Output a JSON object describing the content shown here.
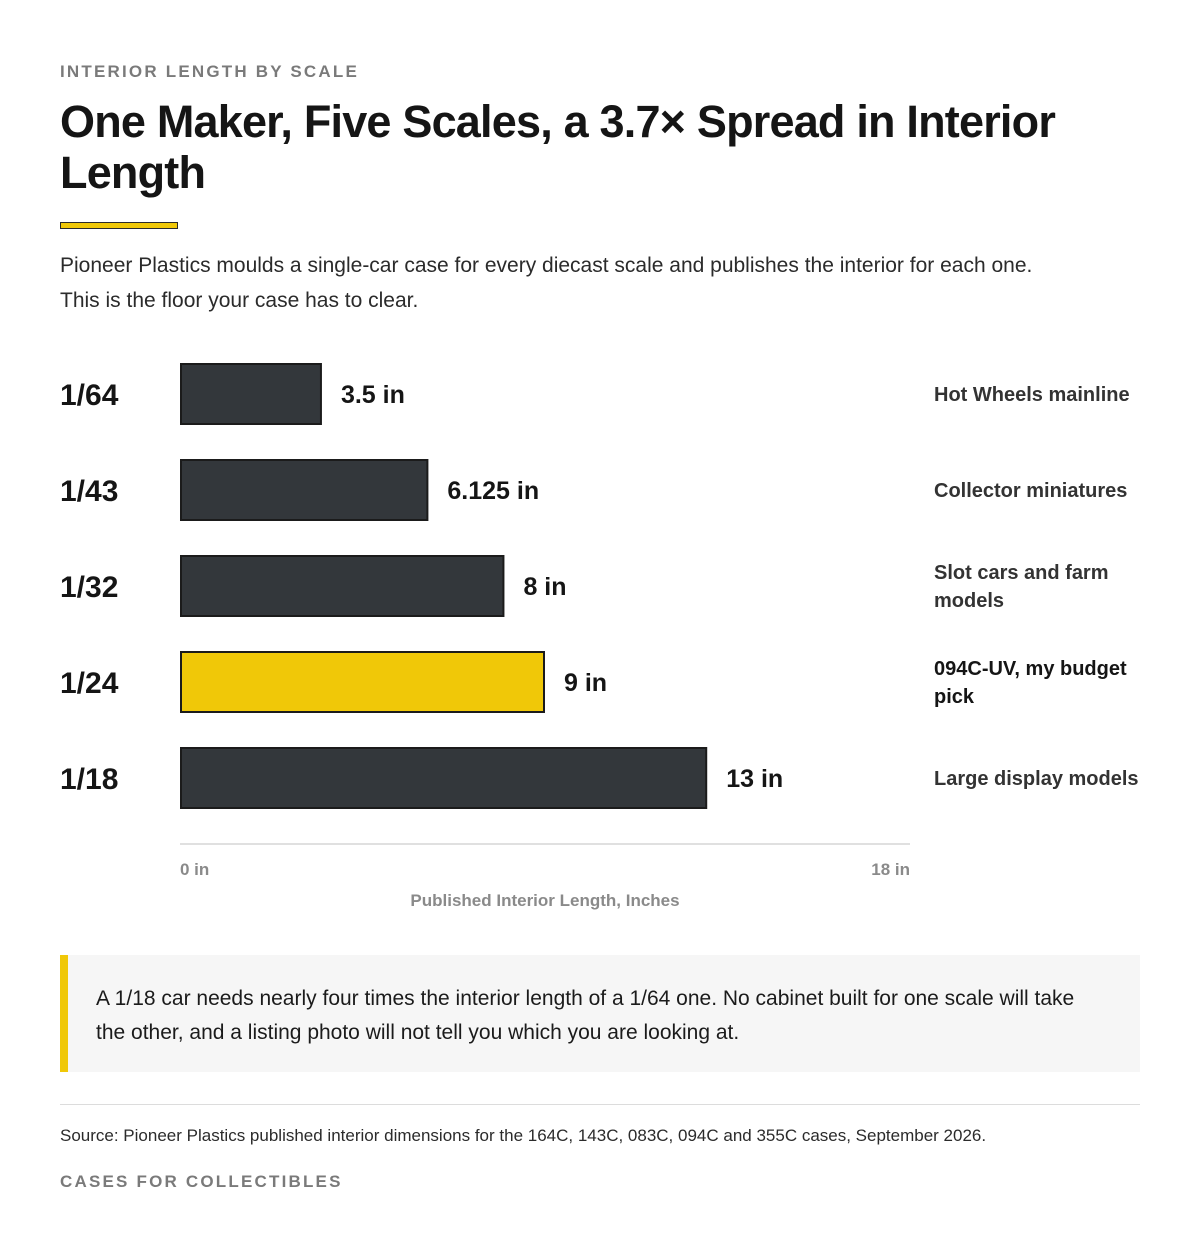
{
  "header": {
    "eyebrow": "INTERIOR LENGTH BY SCALE",
    "title": "One Maker, Five Scales, a 3.7× Spread in Interior Length",
    "subtitle": "Pioneer Plastics moulds a single-car case for every diecast scale and publishes the interior for each one. This is the floor your case has to clear."
  },
  "colors": {
    "bar": "#33373b",
    "highlight": "#f0c808",
    "accent_rule": "#f0c808",
    "bar_stroke": "#1b1b1b"
  },
  "chart_data": {
    "type": "bar",
    "orientation": "horizontal",
    "categories": [
      "1/64",
      "1/43",
      "1/32",
      "1/24",
      "1/18"
    ],
    "values": [
      3.5,
      6.125,
      8,
      9,
      13
    ],
    "value_labels": [
      "3.5 in",
      "6.125 in",
      "8 in",
      "9 in",
      "13 in"
    ],
    "annotations": [
      "Hot Wheels mainline",
      "Collector miniatures",
      "Slot cars and farm models",
      "094C-UV, my budget pick",
      "Large display models"
    ],
    "highlight_index": 3,
    "xlim": [
      0,
      18
    ],
    "xticks": [
      "0 in",
      "18 in"
    ],
    "xlabel": "Published Interior Length, Inches",
    "grid": false
  },
  "callout": {
    "text": "A 1/18 car needs nearly four times the interior length of a 1/64 one. No cabinet built for one scale will take the other, and a listing photo will not tell you which you are looking at."
  },
  "footer": {
    "source": "Source: Pioneer Plastics published interior dimensions for the 164C, 143C, 083C, 094C and 355C cases, September 2026.",
    "brand": "CASES FOR COLLECTIBLES"
  }
}
